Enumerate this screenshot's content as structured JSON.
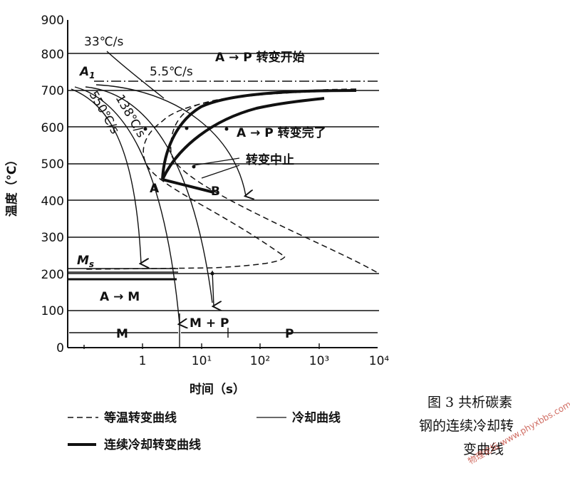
{
  "chart": {
    "y_axis_label": "温度（℃）",
    "x_axis_label": "时间（s）",
    "y_ticks": [
      "900",
      "800",
      "700",
      "600",
      "500",
      "400",
      "300",
      "200",
      "100",
      "0"
    ],
    "x_ticks": [
      "1",
      "10¹",
      "10²",
      "10³",
      "10⁴"
    ]
  },
  "annotations": {
    "rate_33": "33℃/s",
    "rate_5_5": "5.5℃/s",
    "rate_138": "138℃/s",
    "rate_550": "550℃/s",
    "a1": "A",
    "a1_sub": "1",
    "ms": "M",
    "ms_sub": "s",
    "ap_start": "A → P  转变开始",
    "ap_end": "A → P  转变完了",
    "stop": "转变中止",
    "point_a": "A",
    "point_b": "B",
    "am": "A → M",
    "region_m": "M",
    "region_mp": "M + P",
    "region_p": "P"
  },
  "legend": {
    "isothermal": "等温转变曲线",
    "cooling": "冷却曲线",
    "continuous": "连续冷却转变曲线"
  },
  "caption": {
    "line1": "图 3   共析碳素",
    "line2": "钢的连续冷却转",
    "line3": "变曲线"
  },
  "watermark": "物理论坛 www.phyxbbs.com",
  "colors": {
    "ink": "#111111",
    "paper": "#ffffff",
    "watermark": "#c0392b"
  }
}
